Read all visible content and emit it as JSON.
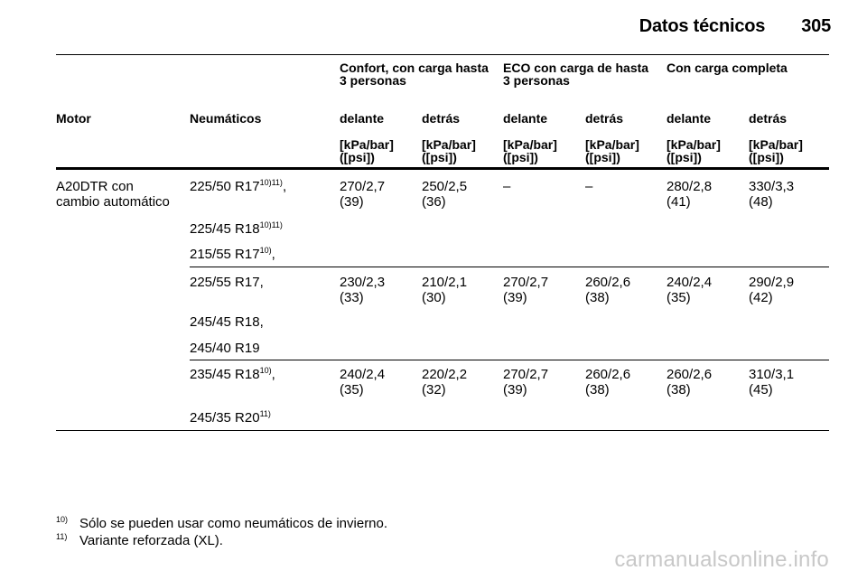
{
  "header": {
    "section_title": "Datos técnicos",
    "page_number": "305"
  },
  "groups": [
    {
      "line1": "Confort, con carga hasta",
      "line2": "3 personas"
    },
    {
      "line1": "ECO con carga de hasta",
      "line2": "3 personas"
    },
    {
      "line1": "Con carga completa",
      "line2": ""
    }
  ],
  "columns": {
    "motor": "Motor",
    "tyres": "Neumáticos",
    "front": "delante",
    "rear": "detrás",
    "unit_line1": "[kPa/bar]",
    "unit_line2": "([psi])"
  },
  "engine": {
    "line1": "A20DTR con",
    "line2": "cambio automático"
  },
  "blocks": [
    {
      "tyres": [
        {
          "text": "225/50 R17",
          "sup": "10)11)",
          "tail": ","
        },
        {
          "text": "225/45 R18",
          "sup": "10)11)",
          "tail": ""
        },
        {
          "text": "215/55 R17",
          "sup": "10)",
          "tail": ","
        }
      ],
      "values": [
        {
          "l1": "270/2,7",
          "l2": "(39)"
        },
        {
          "l1": "250/2,5",
          "l2": "(36)"
        },
        {
          "l1": "–",
          "l2": ""
        },
        {
          "l1": "–",
          "l2": ""
        },
        {
          "l1": "280/2,8",
          "l2": "(41)"
        },
        {
          "l1": "330/3,3",
          "l2": "(48)"
        }
      ]
    },
    {
      "tyres": [
        {
          "text": "225/55 R17,",
          "sup": "",
          "tail": ""
        },
        {
          "text": "245/45 R18,",
          "sup": "",
          "tail": ""
        },
        {
          "text": "245/40 R19",
          "sup": "",
          "tail": ""
        }
      ],
      "values": [
        {
          "l1": "230/2,3",
          "l2": "(33)"
        },
        {
          "l1": "210/2,1",
          "l2": "(30)"
        },
        {
          "l1": "270/2,7",
          "l2": "(39)"
        },
        {
          "l1": "260/2,6",
          "l2": "(38)"
        },
        {
          "l1": "240/2,4",
          "l2": "(35)"
        },
        {
          "l1": "290/2,9",
          "l2": "(42)"
        }
      ]
    },
    {
      "tyres": [
        {
          "text": "235/45 R18",
          "sup": "10)",
          "tail": ","
        },
        {
          "text": "245/35 R20",
          "sup": "11)",
          "tail": ""
        }
      ],
      "values": [
        {
          "l1": "240/2,4",
          "l2": "(35)"
        },
        {
          "l1": "220/2,2",
          "l2": "(32)"
        },
        {
          "l1": "270/2,7",
          "l2": "(39)"
        },
        {
          "l1": "260/2,6",
          "l2": "(38)"
        },
        {
          "l1": "260/2,6",
          "l2": "(38)"
        },
        {
          "l1": "310/3,1",
          "l2": "(45)"
        }
      ]
    }
  ],
  "footnotes": [
    {
      "num": "10)",
      "text": "Sólo se pueden usar como neumáticos de invierno."
    },
    {
      "num": "11)",
      "text": "Variante reforzada (XL)."
    }
  ],
  "watermark": "carmanualsonline.info"
}
